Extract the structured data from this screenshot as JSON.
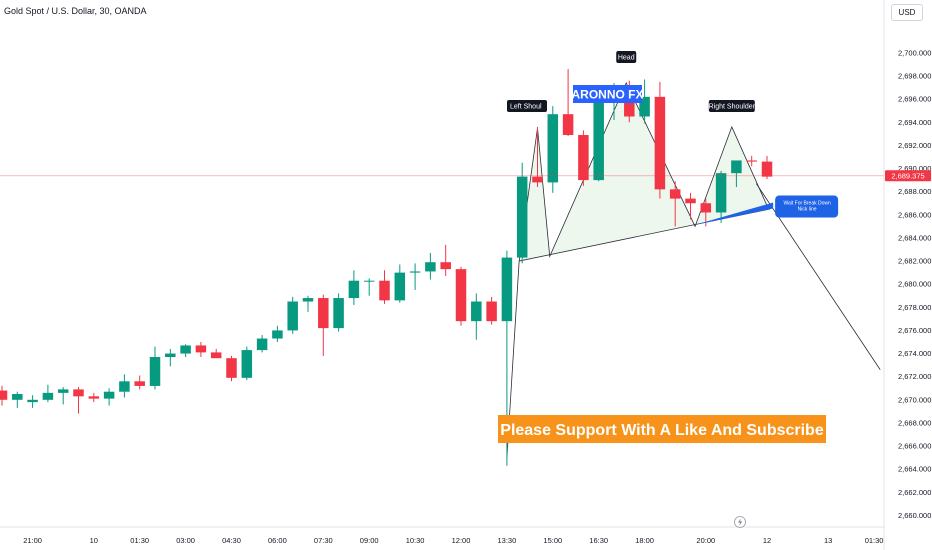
{
  "chart_data": {
    "type": "candlestick",
    "title": "Gold Spot / U.S. Dollar, 30, OANDA",
    "currency": "USD",
    "ylim": [
      2659,
      2702.5
    ],
    "y_ticks": [
      "2,660.000",
      "2,662.000",
      "2,664.000",
      "2,666.000",
      "2,668.000",
      "2,670.000",
      "2,672.000",
      "2,674.000",
      "2,676.000",
      "2,678.000",
      "2,680.000",
      "2,682.000",
      "2,684.000",
      "2,686.000",
      "2,688.000",
      "2,690.000",
      "2,692.000",
      "2,694.000",
      "2,696.000",
      "2,698.000",
      "2,700.000"
    ],
    "x_ticks": [
      {
        "label": "21:00",
        "bar": 2
      },
      {
        "label": "10",
        "bar": 6
      },
      {
        "label": "01:30",
        "bar": 9
      },
      {
        "label": "03:00",
        "bar": 12
      },
      {
        "label": "04:30",
        "bar": 15
      },
      {
        "label": "06:00",
        "bar": 18
      },
      {
        "label": "07:30",
        "bar": 21
      },
      {
        "label": "09:00",
        "bar": 24
      },
      {
        "label": "10:30",
        "bar": 27
      },
      {
        "label": "12:00",
        "bar": 30
      },
      {
        "label": "13:30",
        "bar": 33
      },
      {
        "label": "15:00",
        "bar": 36
      },
      {
        "label": "16:30",
        "bar": 39
      },
      {
        "label": "18:00",
        "bar": 42
      },
      {
        "label": "20:00",
        "bar": 46
      },
      {
        "label": "12",
        "bar": 50
      },
      {
        "label": "13",
        "bar": 54
      },
      {
        "label": "01:30",
        "bar": 57
      }
    ],
    "candles": [
      {
        "o": 2670.8,
        "h": 2671.2,
        "l": 2669.5,
        "c": 2670.0
      },
      {
        "o": 2670.0,
        "h": 2670.7,
        "l": 2669.3,
        "c": 2670.5
      },
      {
        "o": 2669.8,
        "h": 2670.4,
        "l": 2669.3,
        "c": 2670.0
      },
      {
        "o": 2670.0,
        "h": 2671.3,
        "l": 2669.8,
        "c": 2670.6
      },
      {
        "o": 2670.6,
        "h": 2671.1,
        "l": 2669.6,
        "c": 2670.9
      },
      {
        "o": 2670.9,
        "h": 2671.1,
        "l": 2668.8,
        "c": 2670.3
      },
      {
        "o": 2670.3,
        "h": 2670.6,
        "l": 2669.8,
        "c": 2670.1
      },
      {
        "o": 2670.1,
        "h": 2671.0,
        "l": 2669.5,
        "c": 2670.7
      },
      {
        "o": 2670.7,
        "h": 2672.2,
        "l": 2670.2,
        "c": 2671.6
      },
      {
        "o": 2671.6,
        "h": 2672.1,
        "l": 2670.9,
        "c": 2671.2
      },
      {
        "o": 2671.2,
        "h": 2674.6,
        "l": 2670.9,
        "c": 2673.7
      },
      {
        "o": 2673.7,
        "h": 2674.4,
        "l": 2672.9,
        "c": 2674.0
      },
      {
        "o": 2674.0,
        "h": 2674.8,
        "l": 2673.7,
        "c": 2674.7
      },
      {
        "o": 2674.7,
        "h": 2675.0,
        "l": 2673.7,
        "c": 2674.1
      },
      {
        "o": 2674.1,
        "h": 2674.4,
        "l": 2673.6,
        "c": 2673.6
      },
      {
        "o": 2673.6,
        "h": 2673.8,
        "l": 2671.6,
        "c": 2671.9
      },
      {
        "o": 2671.9,
        "h": 2674.6,
        "l": 2671.7,
        "c": 2674.3
      },
      {
        "o": 2674.3,
        "h": 2675.6,
        "l": 2674.1,
        "c": 2675.3
      },
      {
        "o": 2675.3,
        "h": 2676.4,
        "l": 2675.0,
        "c": 2676.0
      },
      {
        "o": 2676.0,
        "h": 2678.9,
        "l": 2675.7,
        "c": 2678.5
      },
      {
        "o": 2678.5,
        "h": 2679.0,
        "l": 2677.6,
        "c": 2678.8
      },
      {
        "o": 2678.8,
        "h": 2679.1,
        "l": 2673.8,
        "c": 2676.2
      },
      {
        "o": 2676.2,
        "h": 2679.2,
        "l": 2675.9,
        "c": 2678.8
      },
      {
        "o": 2678.8,
        "h": 2681.2,
        "l": 2678.2,
        "c": 2680.3
      },
      {
        "o": 2680.3,
        "h": 2680.5,
        "l": 2679.0,
        "c": 2680.3
      },
      {
        "o": 2680.3,
        "h": 2681.2,
        "l": 2678.3,
        "c": 2678.6
      },
      {
        "o": 2678.6,
        "h": 2681.7,
        "l": 2678.4,
        "c": 2681.0
      },
      {
        "o": 2681.0,
        "h": 2681.8,
        "l": 2679.5,
        "c": 2681.1
      },
      {
        "o": 2681.1,
        "h": 2682.7,
        "l": 2680.4,
        "c": 2681.9
      },
      {
        "o": 2681.9,
        "h": 2683.4,
        "l": 2680.7,
        "c": 2681.3
      },
      {
        "o": 2681.3,
        "h": 2681.5,
        "l": 2676.4,
        "c": 2676.8
      },
      {
        "o": 2676.8,
        "h": 2679.2,
        "l": 2675.2,
        "c": 2678.5
      },
      {
        "o": 2678.5,
        "h": 2678.9,
        "l": 2676.5,
        "c": 2676.8
      },
      {
        "o": 2676.8,
        "h": 2682.9,
        "l": 2664.3,
        "c": 2682.3
      },
      {
        "o": 2682.3,
        "h": 2690.5,
        "l": 2681.8,
        "c": 2689.3
      },
      {
        "o": 2689.3,
        "h": 2693.6,
        "l": 2688.4,
        "c": 2688.8
      },
      {
        "o": 2688.8,
        "h": 2695.4,
        "l": 2687.9,
        "c": 2694.7
      },
      {
        "o": 2694.7,
        "h": 2698.6,
        "l": 2692.8,
        "c": 2692.9
      },
      {
        "o": 2692.9,
        "h": 2693.3,
        "l": 2688.5,
        "c": 2689.0
      },
      {
        "o": 2689.0,
        "h": 2696.1,
        "l": 2688.9,
        "c": 2695.7
      },
      {
        "o": 2695.7,
        "h": 2697.4,
        "l": 2694.2,
        "c": 2696.4
      },
      {
        "o": 2696.4,
        "h": 2697.6,
        "l": 2694.0,
        "c": 2694.5
      },
      {
        "o": 2694.5,
        "h": 2697.7,
        "l": 2693.9,
        "c": 2696.2
      },
      {
        "o": 2696.2,
        "h": 2697.5,
        "l": 2687.4,
        "c": 2688.2
      },
      {
        "o": 2688.2,
        "h": 2688.9,
        "l": 2685.0,
        "c": 2687.4
      },
      {
        "o": 2687.4,
        "h": 2687.9,
        "l": 2685.6,
        "c": 2687.0
      },
      {
        "o": 2687.0,
        "h": 2687.4,
        "l": 2685.0,
        "c": 2686.2
      },
      {
        "o": 2686.2,
        "h": 2689.8,
        "l": 2685.3,
        "c": 2689.6
      },
      {
        "o": 2689.6,
        "h": 2690.6,
        "l": 2688.4,
        "c": 2690.7
      },
      {
        "o": 2690.7,
        "h": 2691.1,
        "l": 2690.2,
        "c": 2690.6
      },
      {
        "o": 2690.6,
        "h": 2691.1,
        "l": 2689.1,
        "c": 2689.3
      }
    ],
    "current_price": "2,689.375",
    "current_price_value": 2689.375,
    "pattern": {
      "type": "head-and-shoulders",
      "points": [
        {
          "bar": 33.8,
          "price": 2682.0
        },
        {
          "bar": 35.0,
          "price": 2693.5
        },
        {
          "bar": 35.8,
          "price": 2682.4
        },
        {
          "bar": 40.8,
          "price": 2697.4
        },
        {
          "bar": 45.3,
          "price": 2685.0
        },
        {
          "bar": 47.7,
          "price": 2693.6
        },
        {
          "bar": 50.1,
          "price": 2686.5
        }
      ],
      "neckline": [
        {
          "bar": 33.8,
          "price": 2682.0
        },
        {
          "bar": 50.2,
          "price": 2686.5
        }
      ],
      "projection": [
        {
          "bar": 33.0,
          "price": 2665.0
        },
        {
          "bar": 33.8,
          "price": 2682.0
        }
      ],
      "breakdown_line": [
        {
          "bar": 49.3,
          "price": 2688.7
        },
        {
          "bar": 57.4,
          "price": 2672.6
        }
      ],
      "callout_arrow": [
        {
          "bar": 45.2,
          "price": 2685.1
        },
        {
          "bar": 50.4,
          "price": 2686.8
        }
      ]
    },
    "labels": {
      "head": "Head",
      "left_shoulder": "Left Shoul",
      "right_shoulder": "Right Shoulder",
      "brand": "ARONNO FX",
      "support": "Please Support With A Like And Subscribe",
      "callout_line1": "Wait For Break Down",
      "callout_line2": "Nick line"
    },
    "colors": {
      "up": "#089981",
      "down": "#f23645",
      "pattern_fill": "#e8f5e9",
      "callout": "#1e62e6",
      "brand": "#2962ff",
      "support": "#f7931a",
      "label_bg": "#131722"
    }
  }
}
